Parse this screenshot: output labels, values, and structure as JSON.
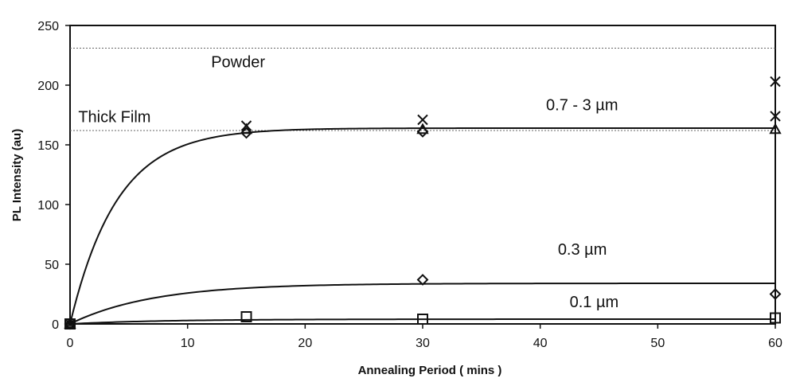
{
  "chart_data": {
    "type": "scatter",
    "xlabel": "Annealing Period ( mins )",
    "ylabel": "PL Intensity (au)",
    "xlim": [
      0,
      60
    ],
    "ylim": [
      0,
      250
    ],
    "x_ticks": [
      0,
      10,
      20,
      30,
      40,
      50,
      60
    ],
    "y_ticks": [
      0,
      50,
      100,
      150,
      200,
      250
    ],
    "grid": false,
    "legend": "none",
    "reference_lines": [
      {
        "label": "Powder",
        "y": 231
      },
      {
        "label": "Thick Film",
        "y": 162
      }
    ],
    "series": [
      {
        "marker": "x",
        "points": [
          {
            "x": 0,
            "y": 0
          },
          {
            "x": 15,
            "y": 166
          },
          {
            "x": 30,
            "y": 171
          },
          {
            "x": 60,
            "y": 203
          },
          {
            "x": 60,
            "y": 174
          }
        ]
      },
      {
        "marker": "triangle",
        "points": [
          {
            "x": 0,
            "y": 0
          },
          {
            "x": 15,
            "y": 163
          },
          {
            "x": 30,
            "y": 163
          },
          {
            "x": 60,
            "y": 163
          }
        ]
      },
      {
        "marker": "diamond",
        "points": [
          {
            "x": 0,
            "y": 0
          },
          {
            "x": 15,
            "y": 160
          },
          {
            "x": 30,
            "y": 161
          },
          {
            "x": 30,
            "y": 37
          },
          {
            "x": 60,
            "y": 25
          }
        ]
      },
      {
        "marker": "square",
        "points": [
          {
            "x": 0,
            "y": 0
          },
          {
            "x": 15,
            "y": 6
          },
          {
            "x": 30,
            "y": 4
          },
          {
            "x": 60,
            "y": 5
          }
        ]
      }
    ],
    "fit_curves": [
      {
        "label": "0.7 - 3 µm",
        "plateau": 164,
        "tau": 4
      },
      {
        "label": "0.3 µm",
        "plateau": 34,
        "tau": 7
      },
      {
        "label": "0.1 µm",
        "plateau": 4,
        "tau": 8
      }
    ],
    "annotations": [
      {
        "text": "Powder",
        "x": 12,
        "y": 215
      },
      {
        "text": "Thick Film",
        "x": 0.7,
        "y": 169
      },
      {
        "text": "0.7 - 3 µm",
        "x": 40.5,
        "y": 179
      },
      {
        "text": "0.3 µm",
        "x": 41.5,
        "y": 58
      },
      {
        "text": "0.1 µm",
        "x": 42.5,
        "y": 14
      }
    ]
  }
}
